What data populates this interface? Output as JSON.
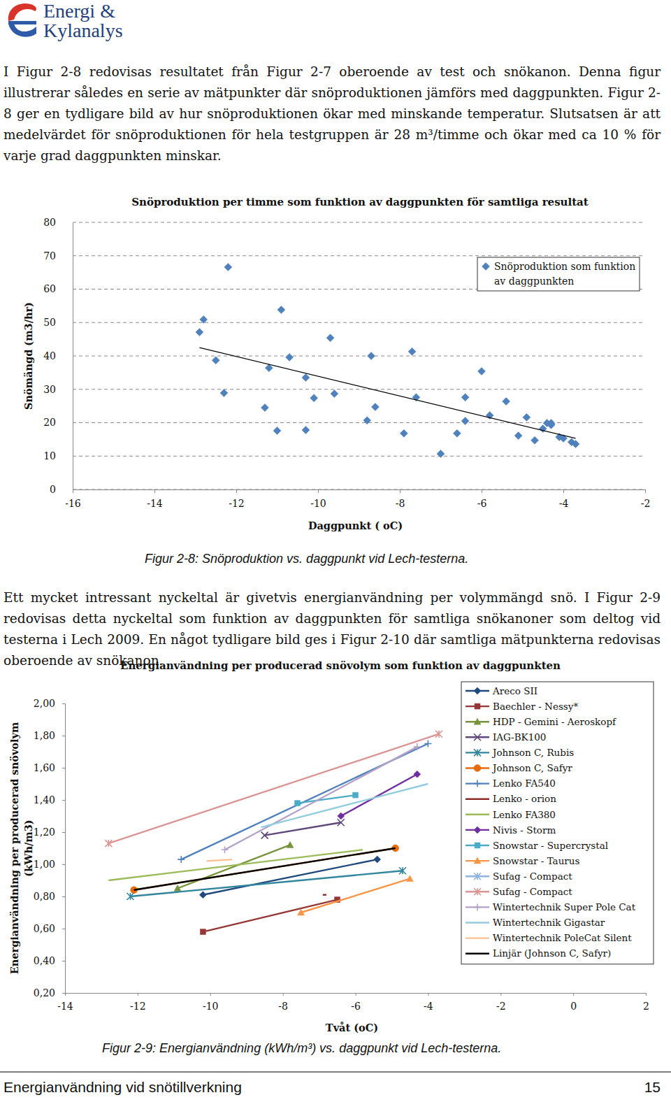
{
  "logo": {
    "lines": [
      "Energi &",
      "Kylanalys"
    ]
  },
  "paragraphs": [
    "I Figur 2-8 redovisas resultatet från Figur 2-7 oberoende av test och snökanon. Denna figur illustrerar således en serie av mätpunkter där snöproduktionen jämförs med daggpunkten. Figur 2-8 ger en tydligare bild av hur snöproduktionen ökar med minskande temperatur. Slutsatsen är att medelvärdet för snöproduktionen för hela testgruppen är 28 m³/timme och ökar med ca 10 % för varje grad daggpunkten minskar.",
    "Ett mycket intressant nyckeltal är givetvis energianvändning per volymmängd snö. I Figur 2-9 redovisas detta nyckeltal som funktion av daggpunkten för samtliga snökanoner som deltog vid testerna i Lech 2009. En något tydligare bild ges i Figur 2-10 där samtliga mätpunkterna redovisas oberoende av snökanon."
  ],
  "chart_data": [
    {
      "type": "scatter",
      "title": "Snöproduktion per timme som funktion av daggpunkten för samtliga resultat",
      "x_label": "Daggpunkt ( oC)",
      "y_label": "Snömängd (m3/hr)",
      "xlim": [
        -16,
        -2
      ],
      "xticks": [
        -16,
        -14,
        -12,
        -10,
        -8,
        -6,
        -4,
        -2
      ],
      "ylim": [
        0,
        80
      ],
      "yticks": [
        0,
        10,
        20,
        30,
        40,
        50,
        60,
        70,
        80
      ],
      "grid": true,
      "legend": "top-right",
      "series": [
        {
          "name": "Snöproduktion som funktion av daggpunkten",
          "color": "#4f81bd",
          "marker": "diamond",
          "x": [
            -12.9,
            -12.8,
            -12.5,
            -12.3,
            -12.2,
            -11.3,
            -11.2,
            -11.0,
            -10.9,
            -10.7,
            -10.3,
            -10.3,
            -10.1,
            -9.7,
            -9.6,
            -8.8,
            -8.7,
            -8.6,
            -7.9,
            -7.7,
            -7.6,
            -7.0,
            -6.6,
            -6.4,
            -6.4,
            -6.0,
            -5.8,
            -5.4,
            -5.1,
            -4.9,
            -4.7,
            -4.5,
            -4.4,
            -4.3,
            -4.3,
            -4.3,
            -4.1,
            -4.0,
            -3.8,
            -3.7
          ],
          "values": [
            47.1,
            50.9,
            38.7,
            28.9,
            66.6,
            24.5,
            36.4,
            17.6,
            53.8,
            39.6,
            33.5,
            17.8,
            27.4,
            45.4,
            28.7,
            20.7,
            40.0,
            24.7,
            16.8,
            41.3,
            27.6,
            10.7,
            16.8,
            27.6,
            20.5,
            35.4,
            22.2,
            26.4,
            16.1,
            21.6,
            14.7,
            18.2,
            19.9,
            19.3,
            19.9,
            19.5,
            15.7,
            15.3,
            14.2,
            13.6
          ]
        },
        {
          "type": "line",
          "color": "#000000",
          "marker": "none",
          "x": [
            -12.9,
            -3.7
          ],
          "values": [
            42.5,
            15.3
          ]
        }
      ]
    },
    {
      "type": "line",
      "title": "Energianvändning per producerad snövolym som funktion av daggpunkten",
      "x_label": "Tvåt (oC)",
      "y_label": [
        "Energianvändning per producerad snövolym",
        "(kWh/m3)"
      ],
      "xlim": [
        -14,
        2
      ],
      "xticks": [
        -14,
        -12,
        -10,
        -8,
        -6,
        -4,
        -2,
        0,
        2
      ],
      "ylim": [
        0.2,
        2.0
      ],
      "yticks": [
        {
          "value": 0.2,
          "label": "0,20"
        },
        {
          "value": 0.4,
          "label": "0,40"
        },
        {
          "value": 0.6,
          "label": "0,60"
        },
        {
          "value": 0.8,
          "label": "0,80"
        },
        {
          "value": 1.0,
          "label": "1,00"
        },
        {
          "value": 1.2,
          "label": "1,20"
        },
        {
          "value": 1.4,
          "label": "1,40"
        },
        {
          "value": 1.6,
          "label": "1,60"
        },
        {
          "value": 1.8,
          "label": "1,80"
        },
        {
          "value": 2.0,
          "label": "2,00"
        }
      ],
      "grid": false,
      "legend": "top-right",
      "series": [
        {
          "name": "Areco SII",
          "color": "#1f497d",
          "marker": "diamond",
          "x": [
            -10.2,
            -5.4
          ],
          "values": [
            0.81,
            1.03
          ]
        },
        {
          "name": "Baechler - Nessy*",
          "color": "#953735",
          "marker": "square",
          "x": [
            -10.2,
            -6.5
          ],
          "values": [
            0.58,
            0.78
          ]
        },
        {
          "name": "HDP - Gemini - Aeroskopf",
          "color": "#77933c",
          "marker": "triangle",
          "x": [
            -10.9,
            -7.8
          ],
          "values": [
            0.85,
            1.12
          ]
        },
        {
          "name": "IAG-BK100",
          "color": "#5f497a",
          "marker": "x",
          "x": [
            -8.5,
            -6.4
          ],
          "values": [
            1.18,
            1.26
          ]
        },
        {
          "name": "Johnson C, Rubis",
          "color": "#31859c",
          "marker": "asterisk",
          "x": [
            -12.2,
            -4.7
          ],
          "values": [
            0.8,
            0.96
          ]
        },
        {
          "name": "Johnson C, Safyr",
          "color": "#e46c0a",
          "marker": "circle",
          "x": [
            -12.1,
            -4.9
          ],
          "values": [
            0.84,
            1.1
          ]
        },
        {
          "name": "Lenko FA540",
          "color": "#4f81bd",
          "marker": "plus",
          "x": [
            -10.8,
            -4.0
          ],
          "values": [
            1.03,
            1.75
          ]
        },
        {
          "name": "Lenko - orion",
          "color": "#8b2d2b",
          "marker": "none",
          "x": [
            -6.9,
            -6.8
          ],
          "values": [
            0.81,
            0.81
          ]
        },
        {
          "name": "Lenko FA380",
          "color": "#9bbb59",
          "marker": "none",
          "x": [
            -12.8,
            -5.8
          ],
          "values": [
            0.9,
            1.09
          ]
        },
        {
          "name": "Nivis - Storm",
          "color": "#7030a0",
          "marker": "diamond",
          "x": [
            -6.4,
            -4.3
          ],
          "values": [
            1.3,
            1.56
          ]
        },
        {
          "name": "Snowstar - Supercrystal",
          "color": "#4bacc6",
          "marker": "square",
          "x": [
            -7.6,
            -6.0
          ],
          "values": [
            1.38,
            1.43
          ]
        },
        {
          "name": "Snowstar - Taurus",
          "color": "#f79646",
          "marker": "triangle",
          "x": [
            -7.5,
            -4.5
          ],
          "values": [
            0.7,
            0.91
          ]
        },
        {
          "name": "Sufag - Compact",
          "color": "#8eb4e3",
          "marker": "asterisk",
          "x": [],
          "values": []
        },
        {
          "name": "Sufag - Compact",
          "color": "#d99694",
          "marker": "asterisk",
          "x": [
            -12.8,
            -3.7
          ],
          "values": [
            1.13,
            1.81
          ]
        },
        {
          "name": "Wintertechnik Super Pole Cat",
          "color": "#b3a2c7",
          "marker": "plus",
          "x": [
            -9.6,
            -4.3
          ],
          "values": [
            1.09,
            1.73
          ]
        },
        {
          "name": "Wintertechnik Gigastar",
          "color": "#93cddd",
          "marker": "none",
          "x": [
            -8.6,
            -4.0
          ],
          "values": [
            1.23,
            1.5
          ]
        },
        {
          "name": "Wintertechnik PoleCat Silent",
          "color": "#fac090",
          "marker": "none",
          "x": [
            -10.1,
            -9.4
          ],
          "values": [
            1.02,
            1.03
          ]
        },
        {
          "name": "Linjär (Johnson C, Safyr)",
          "color": "#000000",
          "marker": "none",
          "x": [
            -12.1,
            -4.9
          ],
          "values": [
            0.84,
            1.1
          ]
        }
      ]
    }
  ],
  "captions": [
    "Figur 2-8: Snöproduktion vs. daggpunkt vid Lech-testerna.",
    "Figur 2-9: Energianvändning (kWh/m³) vs. daggpunkt vid Lech-testerna."
  ],
  "footer": {
    "title": "Energianvändning vid snötillverkning",
    "page": 15
  }
}
